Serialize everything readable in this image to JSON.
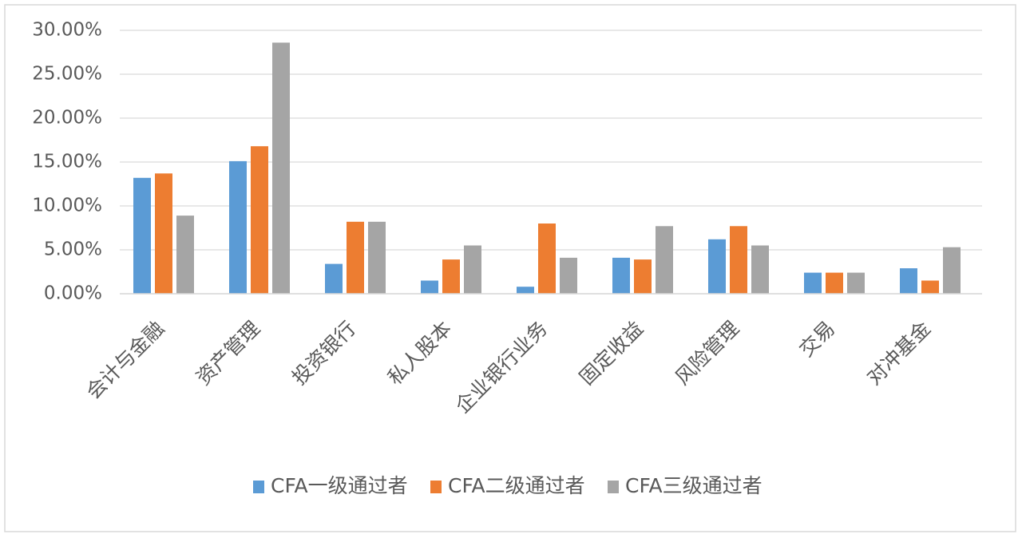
{
  "chart_data": {
    "type": "bar",
    "categories": [
      "会计与金融",
      "资产管理",
      "投资银行",
      "私人股本",
      "企业银行业务",
      "固定收益",
      "风险管理",
      "交易",
      "对冲基金"
    ],
    "series": [
      {
        "name": "CFA一级通过者",
        "color": "#5b9bd5",
        "values": [
          13.2,
          15.1,
          3.4,
          1.5,
          0.8,
          4.1,
          6.2,
          2.4,
          2.9
        ]
      },
      {
        "name": "CFA二级通过者",
        "color": "#ed7d31",
        "values": [
          13.7,
          16.8,
          8.2,
          3.9,
          8.0,
          3.9,
          7.7,
          2.4,
          1.5
        ]
      },
      {
        "name": "CFA三级通过者",
        "color": "#a5a5a5",
        "values": [
          8.9,
          28.6,
          8.2,
          5.5,
          4.1,
          7.7,
          5.5,
          2.4,
          5.3
        ]
      }
    ],
    "ylim": [
      0,
      30
    ],
    "yticks": [
      {
        "value": 0,
        "label": "0.00%"
      },
      {
        "value": 5,
        "label": "5.00%"
      },
      {
        "value": 10,
        "label": "10.00%"
      },
      {
        "value": 15,
        "label": "15.00%"
      },
      {
        "value": 20,
        "label": "20.00%"
      },
      {
        "value": 25,
        "label": "25.00%"
      },
      {
        "value": 30,
        "label": "30.00%"
      }
    ],
    "grid": true,
    "legend": "bottom"
  }
}
